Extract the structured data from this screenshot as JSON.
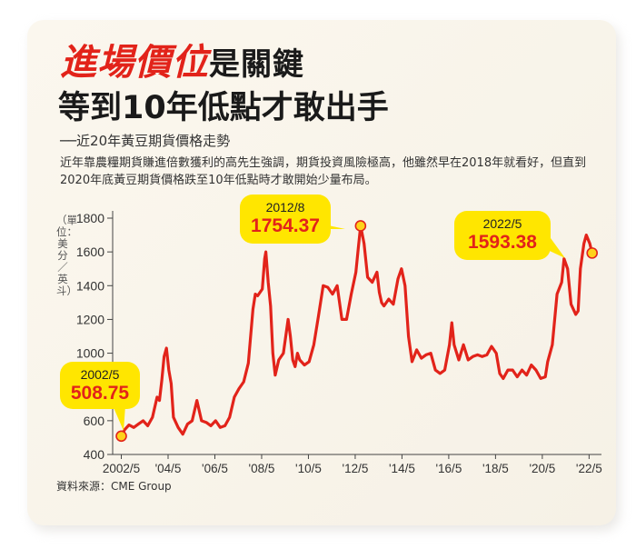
{
  "title": {
    "highlight": "進場價位",
    "rest": "是關鍵",
    "line2": "等到10年低點才敢出手"
  },
  "subtitle": "──近20年黃豆期貨價格走勢",
  "description": "近年靠農糧期貨賺進倍數獲利的高先生強調，期貨投資風險極高，他雖然早在2018年就看好，但直到2020年底黃豆期貨價格跌至10年低點時才敢開始少量布局。",
  "source": "資料來源：CME Group",
  "colors": {
    "line": "#e2231a",
    "callout": "#ffe600",
    "marker": "#ffd21a"
  },
  "chart_data": {
    "type": "line",
    "ylabel": "（單位：美分／英斗）",
    "ylim": [
      400,
      1800
    ],
    "yticks": [
      400,
      600,
      800,
      1000,
      1200,
      1400,
      1600,
      1800
    ],
    "xticks": [
      "2002/5",
      "'04/5",
      "'06/5",
      "'08/5",
      "'10/5",
      "'12/5",
      "'14/5",
      "'16/5",
      "'18/5",
      "'20/5",
      "'22/5"
    ],
    "xlim": [
      2002.0,
      2022.9
    ],
    "grid": false,
    "series": [
      {
        "points": [
          [
            2002.37,
            508.75
          ],
          [
            2002.5,
            545
          ],
          [
            2002.7,
            575
          ],
          [
            2002.9,
            560
          ],
          [
            2003.1,
            580
          ],
          [
            2003.3,
            600
          ],
          [
            2003.5,
            570
          ],
          [
            2003.7,
            620
          ],
          [
            2003.9,
            740
          ],
          [
            2004.0,
            720
          ],
          [
            2004.1,
            840
          ],
          [
            2004.2,
            980
          ],
          [
            2004.3,
            1030
          ],
          [
            2004.4,
            900
          ],
          [
            2004.5,
            820
          ],
          [
            2004.6,
            620
          ],
          [
            2004.8,
            560
          ],
          [
            2005.0,
            520
          ],
          [
            2005.2,
            580
          ],
          [
            2005.4,
            600
          ],
          [
            2005.6,
            720
          ],
          [
            2005.8,
            600
          ],
          [
            2006.0,
            590
          ],
          [
            2006.2,
            570
          ],
          [
            2006.4,
            600
          ],
          [
            2006.6,
            560
          ],
          [
            2006.8,
            570
          ],
          [
            2007.0,
            620
          ],
          [
            2007.2,
            740
          ],
          [
            2007.4,
            790
          ],
          [
            2007.6,
            830
          ],
          [
            2007.8,
            940
          ],
          [
            2008.0,
            1260
          ],
          [
            2008.1,
            1350
          ],
          [
            2008.2,
            1340
          ],
          [
            2008.4,
            1380
          ],
          [
            2008.5,
            1560
          ],
          [
            2008.55,
            1600
          ],
          [
            2008.65,
            1420
          ],
          [
            2008.75,
            1280
          ],
          [
            2008.85,
            1000
          ],
          [
            2008.95,
            870
          ],
          [
            2009.1,
            960
          ],
          [
            2009.3,
            1000
          ],
          [
            2009.5,
            1200
          ],
          [
            2009.6,
            1100
          ],
          [
            2009.7,
            960
          ],
          [
            2009.8,
            920
          ],
          [
            2009.9,
            1000
          ],
          [
            2010.0,
            960
          ],
          [
            2010.2,
            930
          ],
          [
            2010.4,
            950
          ],
          [
            2010.6,
            1050
          ],
          [
            2010.8,
            1220
          ],
          [
            2011.0,
            1400
          ],
          [
            2011.2,
            1390
          ],
          [
            2011.4,
            1350
          ],
          [
            2011.6,
            1400
          ],
          [
            2011.8,
            1200
          ],
          [
            2012.0,
            1200
          ],
          [
            2012.2,
            1350
          ],
          [
            2012.4,
            1480
          ],
          [
            2012.5,
            1620
          ],
          [
            2012.6,
            1754.37
          ],
          [
            2012.75,
            1650
          ],
          [
            2012.9,
            1450
          ],
          [
            2013.1,
            1420
          ],
          [
            2013.3,
            1480
          ],
          [
            2013.4,
            1360
          ],
          [
            2013.5,
            1300
          ],
          [
            2013.6,
            1280
          ],
          [
            2013.8,
            1320
          ],
          [
            2014.0,
            1290
          ],
          [
            2014.2,
            1440
          ],
          [
            2014.35,
            1500
          ],
          [
            2014.5,
            1400
          ],
          [
            2014.65,
            1100
          ],
          [
            2014.8,
            950
          ],
          [
            2015.0,
            1020
          ],
          [
            2015.2,
            970
          ],
          [
            2015.4,
            990
          ],
          [
            2015.6,
            1000
          ],
          [
            2015.8,
            900
          ],
          [
            2016.0,
            880
          ],
          [
            2016.2,
            900
          ],
          [
            2016.4,
            1050
          ],
          [
            2016.5,
            1180
          ],
          [
            2016.6,
            1050
          ],
          [
            2016.8,
            960
          ],
          [
            2017.0,
            1050
          ],
          [
            2017.2,
            960
          ],
          [
            2017.4,
            980
          ],
          [
            2017.6,
            990
          ],
          [
            2017.8,
            980
          ],
          [
            2018.0,
            990
          ],
          [
            2018.2,
            1040
          ],
          [
            2018.4,
            1000
          ],
          [
            2018.55,
            880
          ],
          [
            2018.7,
            850
          ],
          [
            2018.9,
            900
          ],
          [
            2019.1,
            900
          ],
          [
            2019.3,
            860
          ],
          [
            2019.5,
            900
          ],
          [
            2019.7,
            870
          ],
          [
            2019.9,
            930
          ],
          [
            2020.1,
            900
          ],
          [
            2020.3,
            850
          ],
          [
            2020.5,
            860
          ],
          [
            2020.6,
            950
          ],
          [
            2020.8,
            1050
          ],
          [
            2021.0,
            1350
          ],
          [
            2021.2,
            1420
          ],
          [
            2021.3,
            1560
          ],
          [
            2021.45,
            1500
          ],
          [
            2021.6,
            1290
          ],
          [
            2021.8,
            1230
          ],
          [
            2021.9,
            1250
          ],
          [
            2022.0,
            1500
          ],
          [
            2022.15,
            1650
          ],
          [
            2022.25,
            1700
          ],
          [
            2022.4,
            1650
          ],
          [
            2022.5,
            1593.38
          ]
        ]
      }
    ],
    "callouts": [
      {
        "date": "2012/8",
        "value": "1754.37",
        "x": 2012.6,
        "y": 1754.37
      },
      {
        "date": "2022/5",
        "value": "1593.38",
        "x": 2022.5,
        "y": 1593.38
      },
      {
        "date": "2002/5",
        "value": "508.75",
        "x": 2002.37,
        "y": 508.75
      }
    ]
  }
}
